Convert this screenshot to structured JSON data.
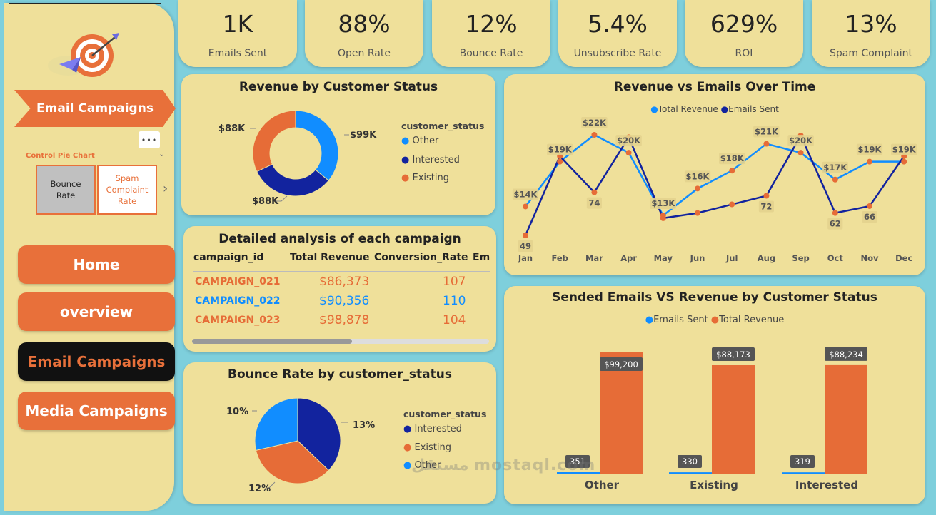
{
  "sidebar": {
    "banner": "Email Campaigns",
    "more": "•••",
    "control": {
      "title": "Control Pie Chart",
      "options": [
        "Bounce Rate",
        "Spam Complaint Rate"
      ]
    },
    "nav": [
      "Home",
      "overview",
      "Email Campaigns",
      "Media Campaigns"
    ]
  },
  "kpis": [
    {
      "value": "1K",
      "label": "Emails Sent"
    },
    {
      "value": "88%",
      "label": "Open Rate"
    },
    {
      "value": "12%",
      "label": "Bounce Rate"
    },
    {
      "value": "5.4%",
      "label": "Unsubscribe Rate"
    },
    {
      "value": "629%",
      "label": "ROI"
    },
    {
      "value": "13%",
      "label": "Spam Complaint"
    }
  ],
  "colors": {
    "other": "#118dff",
    "interested": "#12239e",
    "existing": "#e66c37"
  },
  "revenue_donut": {
    "title": "Revenue by Customer Status",
    "legend_title": "customer_status",
    "legend": [
      "Other",
      "Interested",
      "Existing"
    ],
    "labels": [
      "$99K",
      "$88K",
      "$88K"
    ]
  },
  "campaign_table": {
    "title": "Detailed analysis of each campaign",
    "headers": [
      "campaign_id",
      "Total Revenue",
      "Conversion_Rate",
      "Em"
    ],
    "rows": [
      {
        "id": "CAMPAIGN_021",
        "revenue": "$86,373",
        "conversion": "107"
      },
      {
        "id": "CAMPAIGN_022",
        "revenue": "$90,356",
        "conversion": "110"
      },
      {
        "id": "CAMPAIGN_023",
        "revenue": "$98,878",
        "conversion": "104"
      }
    ]
  },
  "bounce_pie": {
    "title": "Bounce Rate by customer_status",
    "legend_title": "customer_status",
    "legend": [
      "Interested",
      "Existing",
      "Other"
    ],
    "labels": [
      "13%",
      "12%",
      "10%"
    ]
  },
  "line_chart": {
    "title": "Revenue vs Emails Over Time",
    "legend": [
      "Total Revenue",
      "Emails Sent"
    ]
  },
  "bar_chart": {
    "title": "Sended Emails VS Revenue by Customer Status",
    "legend": [
      "Emails Sent",
      "Total Revenue"
    ]
  },
  "watermark": "مستقل mostaql.com",
  "chart_data": [
    {
      "type": "pie",
      "title": "Revenue by Customer Status",
      "categories": [
        "Other",
        "Interested",
        "Existing"
      ],
      "values": [
        99200,
        88234,
        88173
      ],
      "labels": [
        "$99K",
        "$88K",
        "$88K"
      ],
      "donut": true
    },
    {
      "type": "pie",
      "title": "Bounce Rate by customer_status",
      "categories": [
        "Interested",
        "Existing",
        "Other"
      ],
      "values": [
        13,
        12,
        10
      ],
      "labels": [
        "13%",
        "12%",
        "10%"
      ]
    },
    {
      "type": "line",
      "title": "Revenue vs Emails Over Time",
      "categories": [
        "Jan",
        "Feb",
        "Mar",
        "Apr",
        "May",
        "Jun",
        "Jul",
        "Aug",
        "Sep",
        "Oct",
        "Nov",
        "Dec"
      ],
      "series": [
        {
          "name": "Total Revenue",
          "values": [
            14,
            19,
            22,
            20,
            13,
            16,
            18,
            21,
            20,
            17,
            19,
            19
          ],
          "labels": [
            "$14K",
            "$19K",
            "$22K",
            "$20K",
            "$13K",
            "$16K",
            "$18K",
            "$21K",
            "$20K",
            "$17K",
            "$19K",
            "$19K"
          ]
        },
        {
          "name": "Emails Sent",
          "values": [
            49,
            95,
            74,
            106,
            59,
            62,
            67,
            72,
            107,
            62,
            66,
            95
          ],
          "labels": [
            "49",
            "",
            "74",
            "",
            "",
            "",
            "",
            "72",
            "",
            "62",
            "66",
            ""
          ]
        }
      ]
    },
    {
      "type": "bar",
      "title": "Sended Emails VS Revenue by Customer Status",
      "categories": [
        "Other",
        "Existing",
        "Interested"
      ],
      "series": [
        {
          "name": "Emails Sent",
          "values": [
            351,
            330,
            319
          ],
          "labels": [
            "351",
            "330",
            "319"
          ]
        },
        {
          "name": "Total Revenue",
          "values": [
            99200,
            88173,
            88234
          ],
          "labels": [
            "$99,200",
            "$88,173",
            "$88,234"
          ]
        }
      ]
    }
  ]
}
